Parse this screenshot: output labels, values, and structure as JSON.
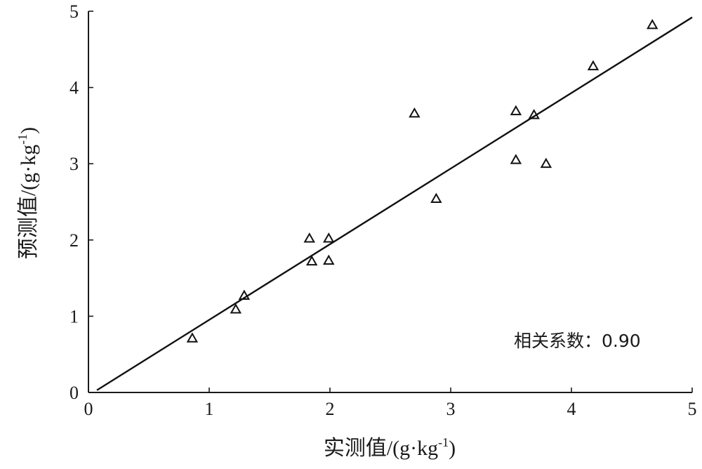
{
  "chart_data": {
    "type": "scatter",
    "xlabel": "实测值/(g·kg",
    "xlabel_sup": "-1",
    "xlabel_close": ")",
    "ylabel": "预测值/(g·kg",
    "ylabel_sup": "-1",
    "ylabel_close": ")",
    "xlim": [
      0,
      5
    ],
    "ylim": [
      0,
      5
    ],
    "x_ticks": [
      "0",
      "1",
      "2",
      "3",
      "4",
      "5"
    ],
    "y_ticks": [
      "0",
      "1",
      "2",
      "3",
      "4",
      "5"
    ],
    "grid": false,
    "marker": "triangle-open",
    "color": "#111111",
    "annotation": "相关系数：0.90",
    "points": [
      {
        "x": 0.86,
        "y": 0.71
      },
      {
        "x": 1.22,
        "y": 1.09
      },
      {
        "x": 1.29,
        "y": 1.27
      },
      {
        "x": 1.83,
        "y": 2.02
      },
      {
        "x": 1.85,
        "y": 1.72
      },
      {
        "x": 1.99,
        "y": 2.02
      },
      {
        "x": 1.99,
        "y": 1.73
      },
      {
        "x": 2.7,
        "y": 3.66
      },
      {
        "x": 2.88,
        "y": 2.54
      },
      {
        "x": 3.54,
        "y": 3.69
      },
      {
        "x": 3.54,
        "y": 3.05
      },
      {
        "x": 3.69,
        "y": 3.64
      },
      {
        "x": 3.79,
        "y": 3.0
      },
      {
        "x": 4.18,
        "y": 4.28
      },
      {
        "x": 4.67,
        "y": 4.82
      }
    ],
    "fit_line": {
      "x": [
        0.07,
        5.0
      ],
      "y": [
        0.03,
        4.92
      ]
    }
  }
}
